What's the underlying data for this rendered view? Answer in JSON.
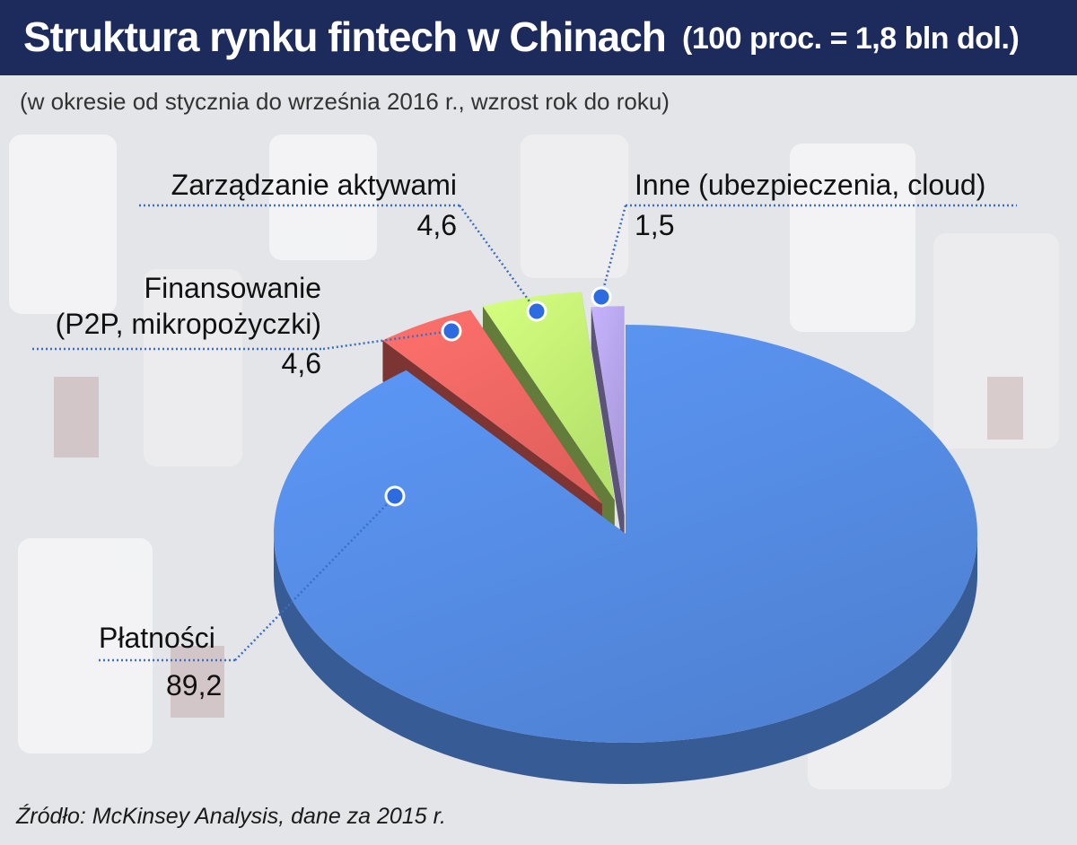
{
  "header": {
    "title": "Struktura rynku fintech w Chinach",
    "title_note": "(100 proc. = 1,8 bln dol.)"
  },
  "subtitle": "(w okresie od stycznia do września 2016 r., wzrost rok do roku)",
  "source": "Źródło: McKinsey Analysis, dane za 2015 r.",
  "colors": {
    "header_bg": "#1d2b5c",
    "payments": "#4f82d4",
    "financing": "#e2605c",
    "asset_management": "#b5e26c",
    "other": "#a898d8",
    "leader": "#3a6fc4"
  },
  "chart_data": {
    "type": "pie",
    "style": "3d-exploded",
    "unit": "proc.",
    "slices": [
      {
        "label": "Płatności",
        "value": 89.2,
        "value_label": "89,2",
        "color": "#4f82d4"
      },
      {
        "label": "Finansowanie (P2P, mikropożyczki)",
        "label_lines": [
          "Finansowanie",
          "(P2P, mikropożyczki)"
        ],
        "value": 4.6,
        "value_label": "4,6",
        "color": "#e2605c"
      },
      {
        "label": "Zarządzanie aktywami",
        "value": 4.6,
        "value_label": "4,6",
        "color": "#b5e26c"
      },
      {
        "label": "Inne (ubezpieczenia, cloud)",
        "value": 1.5,
        "value_label": "1,5",
        "color": "#a898d8"
      }
    ]
  }
}
